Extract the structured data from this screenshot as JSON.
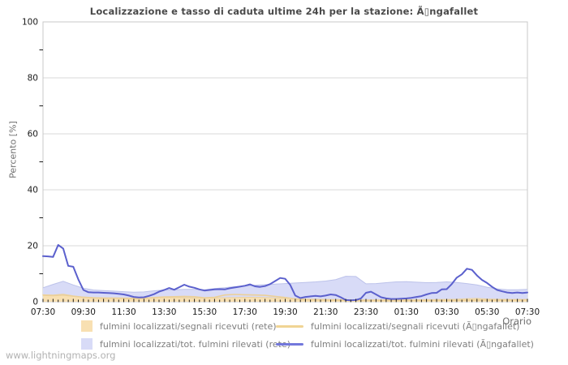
{
  "page": {
    "watermark": "www.lightningmaps.org"
  },
  "chart_data": {
    "type": "area",
    "title": "Localizzazione e tasso di caduta ultime 24h per la stazione: Ã▯ngafallet",
    "xlabel": "Orario",
    "ylabel": "Percento  [%]",
    "ylim": [
      0,
      100
    ],
    "yticks": [
      0,
      20,
      40,
      60,
      80,
      100
    ],
    "y_minor_ticks": [
      10,
      30,
      50,
      70,
      90
    ],
    "x_ticklabels": [
      "07:30",
      "09:30",
      "11:30",
      "13:30",
      "15:30",
      "17:30",
      "19:30",
      "21:30",
      "23:30",
      "01:30",
      "03:30",
      "05:30",
      "07:30"
    ],
    "grid": "horizontal",
    "legend_position": "bottom",
    "colors": {
      "net_signals_fill": "#f8e0b2",
      "net_signals_edge": "#eticd",
      "station_signals_line": "#ecd098",
      "net_total_fill": "#d8dbf7",
      "net_total_edge": "#bcc2ea",
      "station_total_line": "#5b60cd",
      "grid_line": "#d8d8d8",
      "plot_border": "#c8c8c8",
      "tick": "#1a1a1a"
    },
    "series": [
      {
        "name": "fulmini localizzati/segnali ricevuti (rete)",
        "style": "area",
        "color": "#f8e0b2",
        "edge": "#ead2a2",
        "values": [
          2.2,
          2.1,
          2.3,
          1.9,
          1.7,
          1.5,
          1.45,
          1.4,
          1.35,
          1.3,
          1.35,
          1.4,
          1.5,
          1.5,
          1.45,
          1.4,
          1.4,
          1.4,
          1.45,
          1.5,
          1.6,
          1.6,
          1.5,
          1.4,
          1.25,
          1.1,
          1.0,
          0.9,
          0.85,
          0.8,
          0.75,
          0.7,
          0.7,
          0.7,
          0.7,
          0.7,
          0.7,
          0.7,
          0.75,
          0.8,
          0.85,
          0.9,
          1.1,
          1.2,
          1.0,
          0.9,
          0.85,
          0.8,
          0.8
        ]
      },
      {
        "name": "fulmini localizzati/segnali ricevuti (Ã▯ngafallet)",
        "style": "line",
        "color": "#ecd098",
        "values": [
          2.4,
          2.3,
          2.6,
          2.0,
          1.6,
          1.4,
          1.2,
          1.3,
          1.2,
          1.1,
          1.2,
          1.5,
          1.7,
          1.8,
          1.9,
          1.8,
          1.4,
          1.6,
          2.4,
          2.6,
          2.5,
          2.4,
          2.3,
          1.9,
          1.5,
          1.0,
          0.7,
          0.7,
          0.6,
          0.55,
          0.5,
          0.45,
          0.4,
          0.4,
          0.4,
          0.4,
          0.4,
          0.45,
          0.45,
          0.5,
          0.5,
          0.5,
          0.55,
          0.6,
          0.6,
          0.6,
          0.65,
          0.7,
          0.7
        ]
      },
      {
        "name": "fulmini localizzati/tot. fulmini rilevati (rete)",
        "style": "area",
        "color": "#d8dbf7",
        "edge": "#bcc2ea",
        "values": [
          5.0,
          6.2,
          7.3,
          6.0,
          4.8,
          4.2,
          4.0,
          3.8,
          3.6,
          3.4,
          3.5,
          3.9,
          4.2,
          4.3,
          4.4,
          4.4,
          4.3,
          4.7,
          5.0,
          5.4,
          5.6,
          5.9,
          6.1,
          6.3,
          6.5,
          6.7,
          6.9,
          7.1,
          7.4,
          7.9,
          9.1,
          9.0,
          6.4,
          6.5,
          6.8,
          7.1,
          7.2,
          7.0,
          6.8,
          6.9,
          7.1,
          6.9,
          6.5,
          6.0,
          5.2,
          4.6,
          4.3,
          4.3,
          4.4
        ]
      },
      {
        "name": "fulmini localizzati/tot. fulmini rilevati (Ã▯ngafallet)",
        "style": "line",
        "color": "#5b60cd",
        "values": [
          16.3,
          16.2,
          16.0,
          20.3,
          19.0,
          12.8,
          12.5,
          8.0,
          4.2,
          3.4,
          3.3,
          3.3,
          3.2,
          3.1,
          3.0,
          2.8,
          2.6,
          2.2,
          1.7,
          1.5,
          1.6,
          2.1,
          2.7,
          3.6,
          4.2,
          4.9,
          4.3,
          5.2,
          6.1,
          5.4,
          5.0,
          4.4,
          4.0,
          4.2,
          4.4,
          4.5,
          4.4,
          4.8,
          5.1,
          5.4,
          5.7,
          6.2,
          5.5,
          5.3,
          5.6,
          6.3,
          7.4,
          8.5,
          8.2,
          6.0,
          2.2,
          1.3,
          1.7,
          1.9,
          2.1,
          1.9,
          2.2,
          2.6,
          2.4,
          1.6,
          0.6,
          0.5,
          0.6,
          1.2,
          3.2,
          3.6,
          2.6,
          1.6,
          1.2,
          1.0,
          1.0,
          1.1,
          1.2,
          1.4,
          1.7,
          2.0,
          2.6,
          3.1,
          3.2,
          4.4,
          4.5,
          6.3,
          8.6,
          9.8,
          11.8,
          11.4,
          9.4,
          7.8,
          6.7,
          5.3,
          4.2,
          3.7,
          3.3,
          3.1,
          3.3,
          3.1,
          3.3
        ]
      }
    ],
    "draw_order": [
      2,
      0,
      1,
      3
    ],
    "legend": [
      {
        "swatch": "square",
        "color": "#f8e0b2",
        "label": "fulmini localizzati/segnali ricevuti (rete)",
        "row": 0,
        "col": 0
      },
      {
        "swatch": "line",
        "color": "#f0d494",
        "label": "fulmini localizzati/segnali ricevuti (Ã▯ngafallet)",
        "row": 0,
        "col": 1
      },
      {
        "swatch": "square",
        "color": "#d8dbf7",
        "label": "fulmini localizzati/tot. fulmini rilevati (rete)",
        "row": 1,
        "col": 0
      },
      {
        "swatch": "line",
        "color": "#7378dc",
        "label": "fulmini localizzati/tot. fulmini rilevati (Ã▯ngafallet)",
        "row": 1,
        "col": 1
      }
    ]
  }
}
